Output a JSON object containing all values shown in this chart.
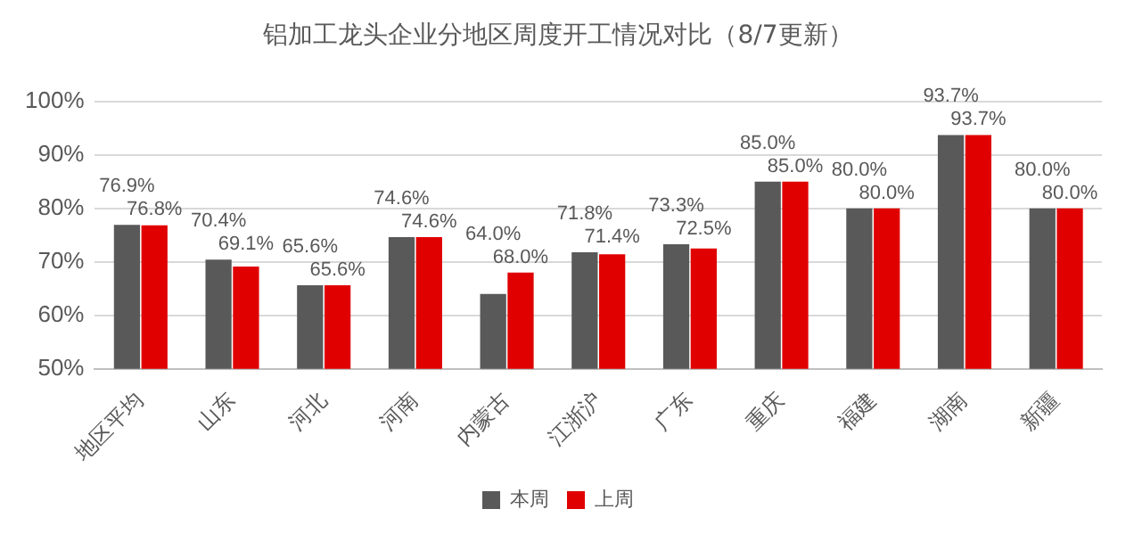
{
  "chart_data": {
    "type": "bar",
    "title": "铝加工龙头企业分地区周度开工情况对比（8/7更新）",
    "categories": [
      "地区平均",
      "山东",
      "河北",
      "河南",
      "内蒙古",
      "江浙沪",
      "广东",
      "重庆",
      "福建",
      "湖南",
      "新疆"
    ],
    "series": [
      {
        "name": "本周",
        "color": "#595959",
        "values": [
          76.9,
          70.4,
          65.6,
          74.6,
          64.0,
          71.8,
          73.3,
          85.0,
          80.0,
          93.7,
          80.0
        ],
        "value_labels": [
          "76.9%",
          "70.4%",
          "65.6%",
          "74.6%",
          "64.0%",
          "71.8%",
          "73.3%",
          "85.0%",
          "80.0%",
          "93.7%",
          "80.0%"
        ]
      },
      {
        "name": "上周",
        "color": "#e00000",
        "values": [
          76.8,
          69.1,
          65.6,
          74.6,
          68.0,
          71.4,
          72.5,
          85.0,
          80.0,
          93.7,
          80.0
        ],
        "value_labels": [
          "76.8%",
          "69.1%",
          "65.6%",
          "74.6%",
          "68.0%",
          "71.4%",
          "72.5%",
          "85.0%",
          "80.0%",
          "93.7%",
          "80.0%"
        ]
      }
    ],
    "ylim": [
      50,
      100
    ],
    "yticks": [
      {
        "value": 50,
        "label": "50%"
      },
      {
        "value": 60,
        "label": "60%"
      },
      {
        "value": 70,
        "label": "70%"
      },
      {
        "value": 80,
        "label": "80%"
      },
      {
        "value": 90,
        "label": "90%"
      },
      {
        "value": 100,
        "label": "100%"
      }
    ],
    "grid": "y",
    "legend": "bottom"
  }
}
